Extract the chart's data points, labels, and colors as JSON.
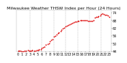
{
  "title": "Milwaukee Weather THSW Index per Hour (24 Hours)",
  "dot_color": "#dd0000",
  "bg_color": "#ffffff",
  "grid_color": "#888888",
  "ylim": [
    44,
    76
  ],
  "xlim": [
    -0.5,
    23.5
  ],
  "yticks": [
    44,
    50,
    56,
    62,
    68,
    74
  ],
  "yticklabels": [
    "44",
    "50",
    "56",
    "62",
    "68",
    "74"
  ],
  "xtick_positions": [
    0,
    1,
    2,
    3,
    4,
    5,
    6,
    7,
    8,
    9,
    10,
    11,
    12,
    13,
    14,
    15,
    16,
    17,
    18,
    19,
    20,
    21,
    22,
    23
  ],
  "xticklabels": [
    "0",
    "1",
    "2",
    "3",
    "4",
    "5",
    "6",
    "7",
    "8",
    "9",
    "10",
    "11",
    "12",
    "13",
    "14",
    "15",
    "16",
    "17",
    "18",
    "19",
    "20",
    "21",
    "22",
    "23"
  ],
  "vgrid_positions": [
    3,
    6,
    9,
    12,
    15,
    18,
    21
  ],
  "hours": [
    0,
    0.2,
    0.5,
    1,
    1.3,
    1.7,
    2,
    2.4,
    2.8,
    3,
    3.3,
    3.6,
    4,
    4.4,
    4.8,
    5,
    5.3,
    5.7,
    6,
    6.3,
    6.6,
    7,
    7.4,
    7.8,
    8,
    8.3,
    8.7,
    9,
    9.3,
    9.7,
    10,
    10.3,
    10.7,
    11,
    11.3,
    11.7,
    12,
    12.3,
    12.7,
    13,
    13.3,
    13.7,
    14,
    14.3,
    14.7,
    15,
    15.3,
    15.7,
    16,
    16.3,
    16.7,
    17,
    17.3,
    17.7,
    18,
    18.3,
    18.7,
    19,
    19.3,
    19.7,
    20,
    20.3,
    20.7,
    21,
    21.3,
    21.7,
    22,
    22.3,
    22.7,
    23
  ],
  "values": [
    44.5,
    44.3,
    44.6,
    44.2,
    44.0,
    44.4,
    44.3,
    44.8,
    44.5,
    44.3,
    44.6,
    44.9,
    44.7,
    44.5,
    44.8,
    45.0,
    45.3,
    45.6,
    46.5,
    47.0,
    47.5,
    49.0,
    49.8,
    50.5,
    52.0,
    52.8,
    53.5,
    55.5,
    56.2,
    57.0,
    58.0,
    58.8,
    59.5,
    61.0,
    61.7,
    62.3,
    63.5,
    64.0,
    64.5,
    65.0,
    65.5,
    66.0,
    66.5,
    67.0,
    67.2,
    67.5,
    67.8,
    68.0,
    68.0,
    68.2,
    68.1,
    68.2,
    68.0,
    67.8,
    67.6,
    67.5,
    67.8,
    68.2,
    70.0,
    70.5,
    71.0,
    71.5,
    72.0,
    73.0,
    73.2,
    72.8,
    72.5,
    72.2,
    71.8,
    71.0
  ],
  "dot_size": 1.8,
  "title_fontsize": 4.5,
  "tick_fontsize": 3.5
}
